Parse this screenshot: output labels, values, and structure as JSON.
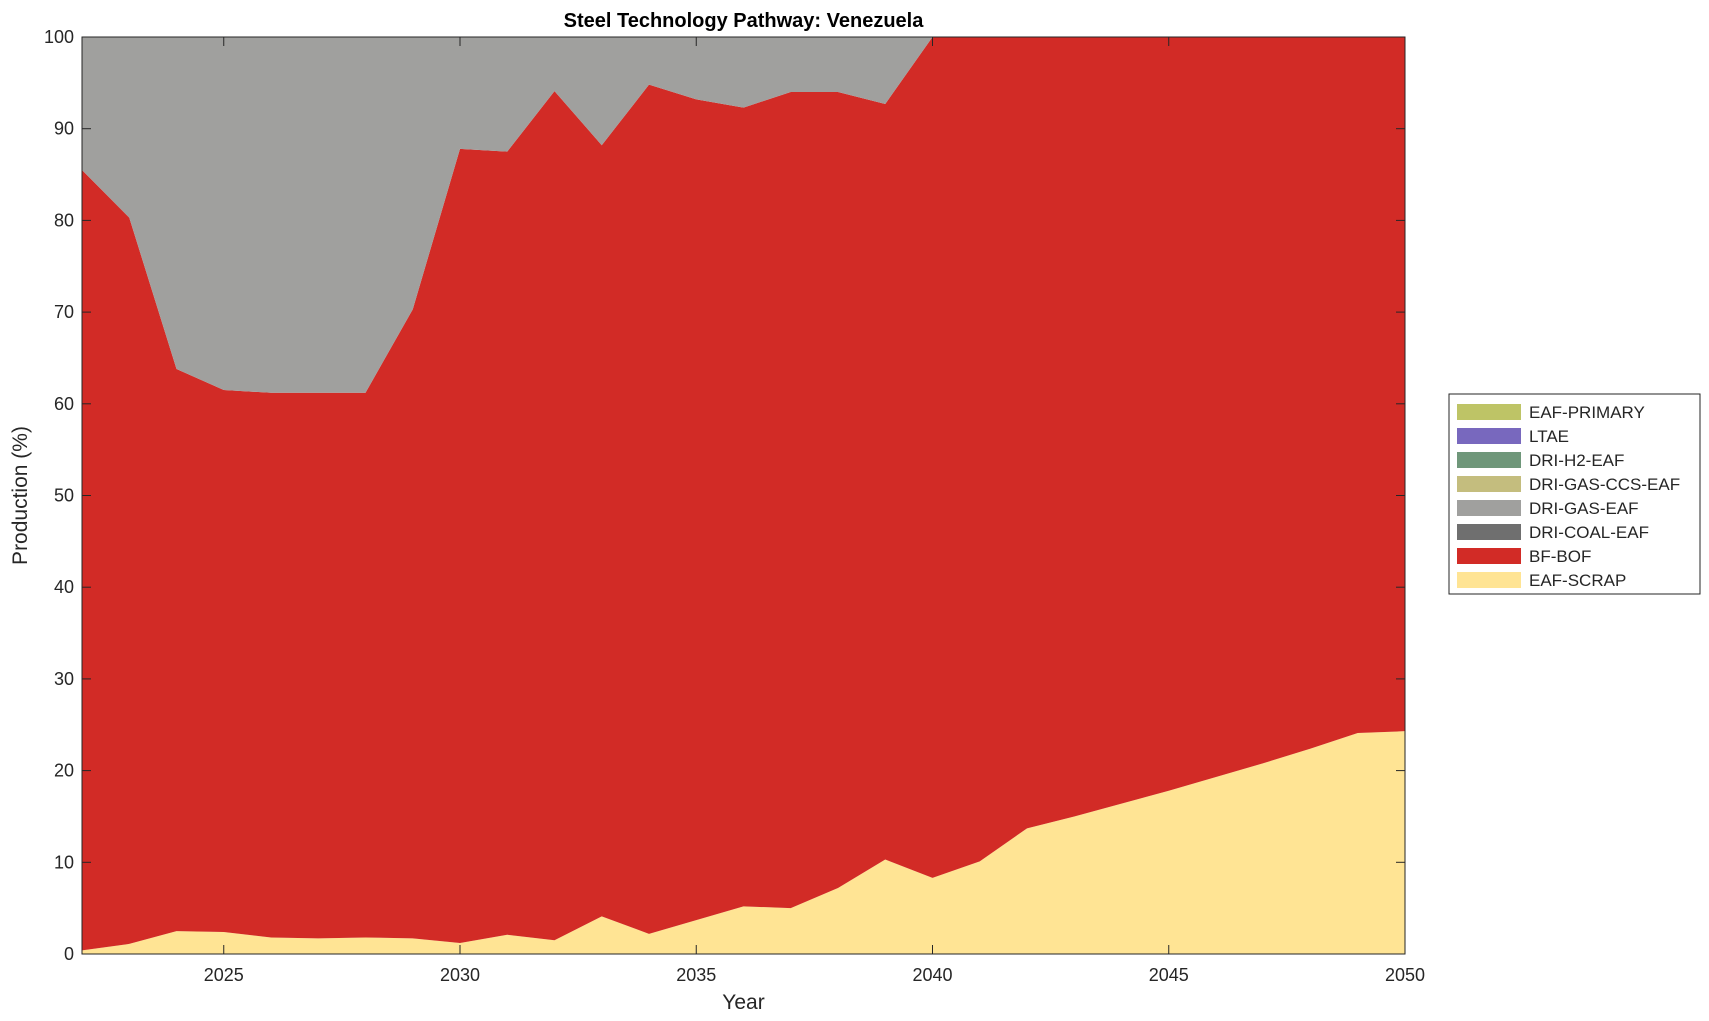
{
  "chart_data": {
    "type": "area",
    "title": "Steel Technology Pathway: Venezuela",
    "xlabel": "Year",
    "ylabel": "Production (%)",
    "xlim": [
      2022,
      2050
    ],
    "ylim": [
      0,
      100
    ],
    "xticks": [
      2025,
      2030,
      2035,
      2040,
      2045,
      2050
    ],
    "yticks": [
      0,
      10,
      20,
      30,
      40,
      50,
      60,
      70,
      80,
      90,
      100
    ],
    "legend_position": "right",
    "x": [
      2022,
      2023,
      2024,
      2025,
      2026,
      2027,
      2028,
      2029,
      2030,
      2031,
      2032,
      2033,
      2034,
      2035,
      2036,
      2037,
      2038,
      2039,
      2040,
      2041,
      2042,
      2043,
      2044,
      2045,
      2046,
      2047,
      2048,
      2049,
      2050
    ],
    "series": [
      {
        "name": "EAF-SCRAP",
        "color": "#FFE494",
        "values": [
          0.4,
          1.1,
          2.5,
          2.4,
          1.8,
          1.7,
          1.8,
          1.7,
          1.2,
          2.1,
          1.5,
          4.1,
          2.2,
          3.7,
          5.2,
          5.0,
          7.2,
          10.3,
          8.3,
          10.1,
          13.7,
          15.0,
          16.4,
          17.8,
          19.3,
          20.8,
          22.4,
          24.1,
          24.3
        ]
      },
      {
        "name": "BF-BOF",
        "color": "#D22B26",
        "values": [
          85.1,
          79.2,
          61.3,
          59.1,
          59.4,
          59.5,
          59.4,
          68.6,
          86.6,
          85.4,
          92.6,
          84.1,
          92.6,
          89.5,
          87.1,
          89.0,
          86.8,
          82.4,
          91.7,
          89.9,
          86.3,
          85.0,
          83.6,
          82.2,
          80.7,
          79.2,
          77.6,
          75.9,
          75.7
        ]
      },
      {
        "name": "DRI-COAL-EAF",
        "color": "#6F6F6F",
        "values": [
          0,
          0,
          0,
          0,
          0,
          0,
          0,
          0,
          0,
          0,
          0,
          0,
          0,
          0,
          0,
          0,
          0,
          0,
          0,
          0,
          0,
          0,
          0,
          0,
          0,
          0,
          0,
          0,
          0
        ]
      },
      {
        "name": "DRI-GAS-EAF",
        "color": "#A0A09E",
        "values": [
          14.5,
          19.7,
          36.2,
          38.5,
          38.8,
          38.8,
          38.8,
          29.7,
          12.2,
          12.5,
          5.9,
          11.8,
          5.2,
          6.8,
          7.7,
          6.0,
          6.0,
          7.3,
          0,
          0,
          0,
          0,
          0,
          0,
          0,
          0,
          0,
          0,
          0
        ]
      },
      {
        "name": "DRI-GAS-CCS-EAF",
        "color": "#C4BD7E",
        "values": [
          0,
          0,
          0,
          0,
          0,
          0,
          0,
          0,
          0,
          0,
          0,
          0,
          0,
          0,
          0,
          0,
          0,
          0,
          0,
          0,
          0,
          0,
          0,
          0,
          0,
          0,
          0,
          0,
          0
        ]
      },
      {
        "name": "DRI-H2-EAF",
        "color": "#6F977A",
        "values": [
          0,
          0,
          0,
          0,
          0,
          0,
          0,
          0,
          0,
          0,
          0,
          0,
          0,
          0,
          0,
          0,
          0,
          0,
          0,
          0,
          0,
          0,
          0,
          0,
          0,
          0,
          0,
          0,
          0
        ]
      },
      {
        "name": "LTAE",
        "color": "#7868BE",
        "values": [
          0,
          0,
          0,
          0,
          0,
          0,
          0,
          0,
          0,
          0,
          0,
          0,
          0,
          0,
          0,
          0,
          0,
          0,
          0,
          0,
          0,
          0,
          0,
          0,
          0,
          0,
          0,
          0,
          0
        ]
      },
      {
        "name": "EAF-PRIMARY",
        "color": "#BEC466",
        "values": [
          0,
          0,
          0,
          0,
          0,
          0,
          0,
          0,
          0,
          0,
          0,
          0,
          0,
          0,
          0,
          0,
          0,
          0,
          0,
          0,
          0,
          0,
          0,
          0,
          0,
          0,
          0,
          0,
          0
        ]
      }
    ],
    "legend_order": [
      "EAF-PRIMARY",
      "LTAE",
      "DRI-H2-EAF",
      "DRI-GAS-CCS-EAF",
      "DRI-GAS-EAF",
      "DRI-COAL-EAF",
      "BF-BOF",
      "EAF-SCRAP"
    ]
  }
}
